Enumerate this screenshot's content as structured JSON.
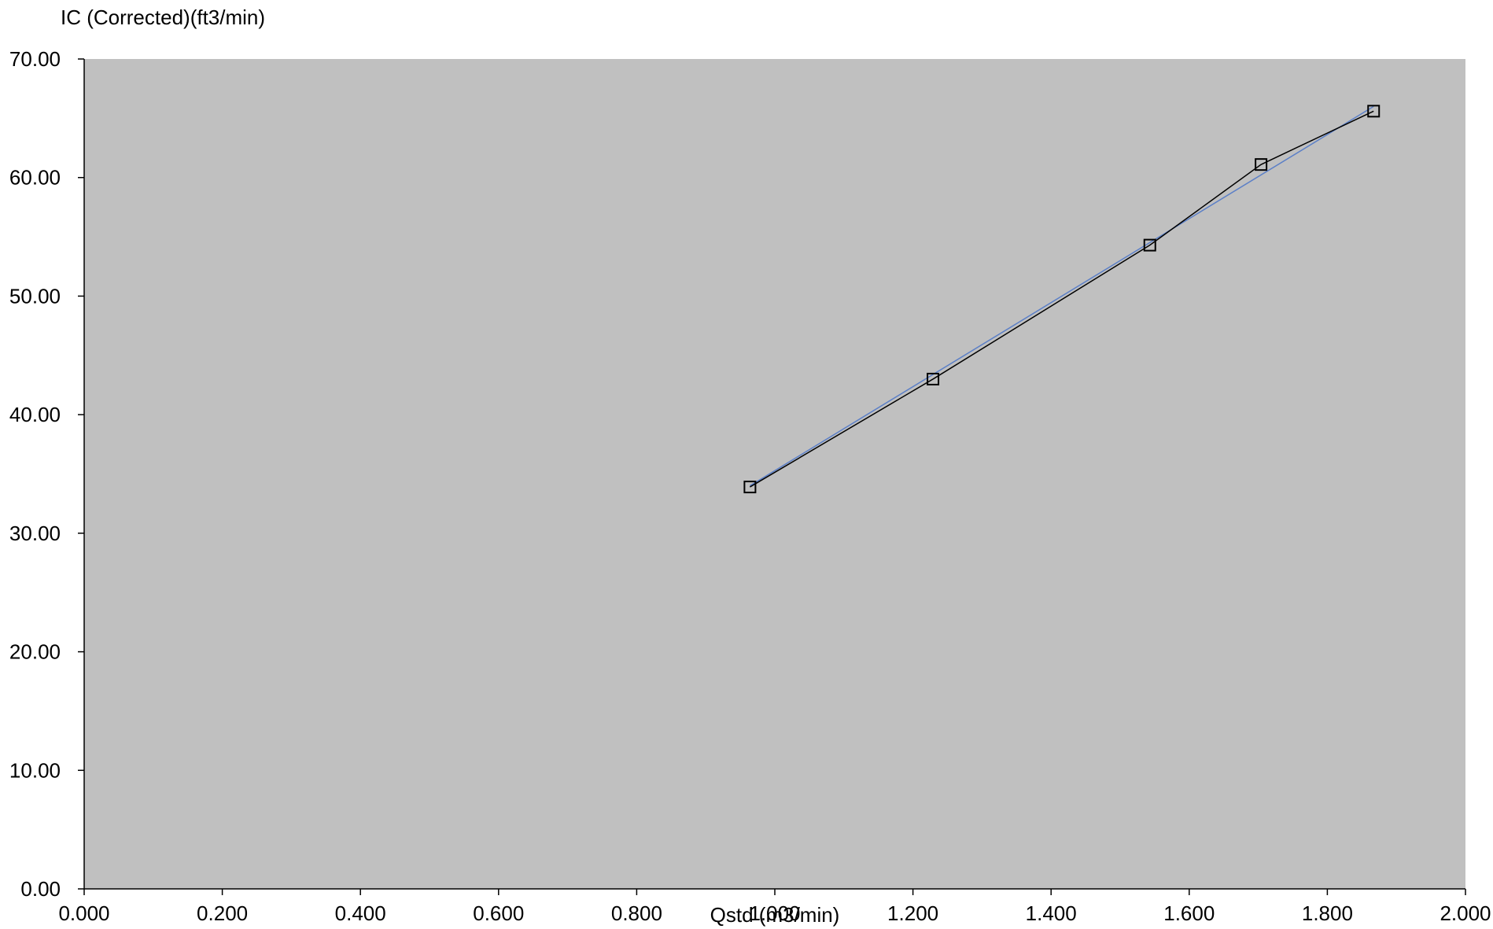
{
  "chart_data": {
    "type": "scatter",
    "title": "",
    "xlabel": "Qstd (m3/min)",
    "ylabel": "IC (Corrected)(ft3/min)",
    "xlim": [
      0,
      2
    ],
    "ylim": [
      0,
      70
    ],
    "x_ticks": [
      "0.000",
      "0.200",
      "0.400",
      "0.600",
      "0.800",
      "1.000",
      "1.200",
      "1.400",
      "1.600",
      "1.800",
      "2.000"
    ],
    "y_ticks": [
      "0.00",
      "10.00",
      "20.00",
      "30.00",
      "40.00",
      "50.00",
      "60.00",
      "70.00"
    ],
    "grid": false,
    "legend": "none",
    "plot_background": "#c0c0c0",
    "series": [
      {
        "style": "line-with-square-markers",
        "color": "#000000",
        "points": [
          {
            "x": 0.964,
            "y": 33.9
          },
          {
            "x": 1.229,
            "y": 43.0
          },
          {
            "x": 1.543,
            "y": 54.3
          },
          {
            "x": 1.704,
            "y": 61.1
          },
          {
            "x": 1.867,
            "y": 65.6
          }
        ]
      },
      {
        "style": "trendline",
        "color": "#5b7fc7",
        "points": [
          {
            "x": 0.964,
            "y": 34.0
          },
          {
            "x": 1.867,
            "y": 66.0
          }
        ]
      }
    ]
  }
}
